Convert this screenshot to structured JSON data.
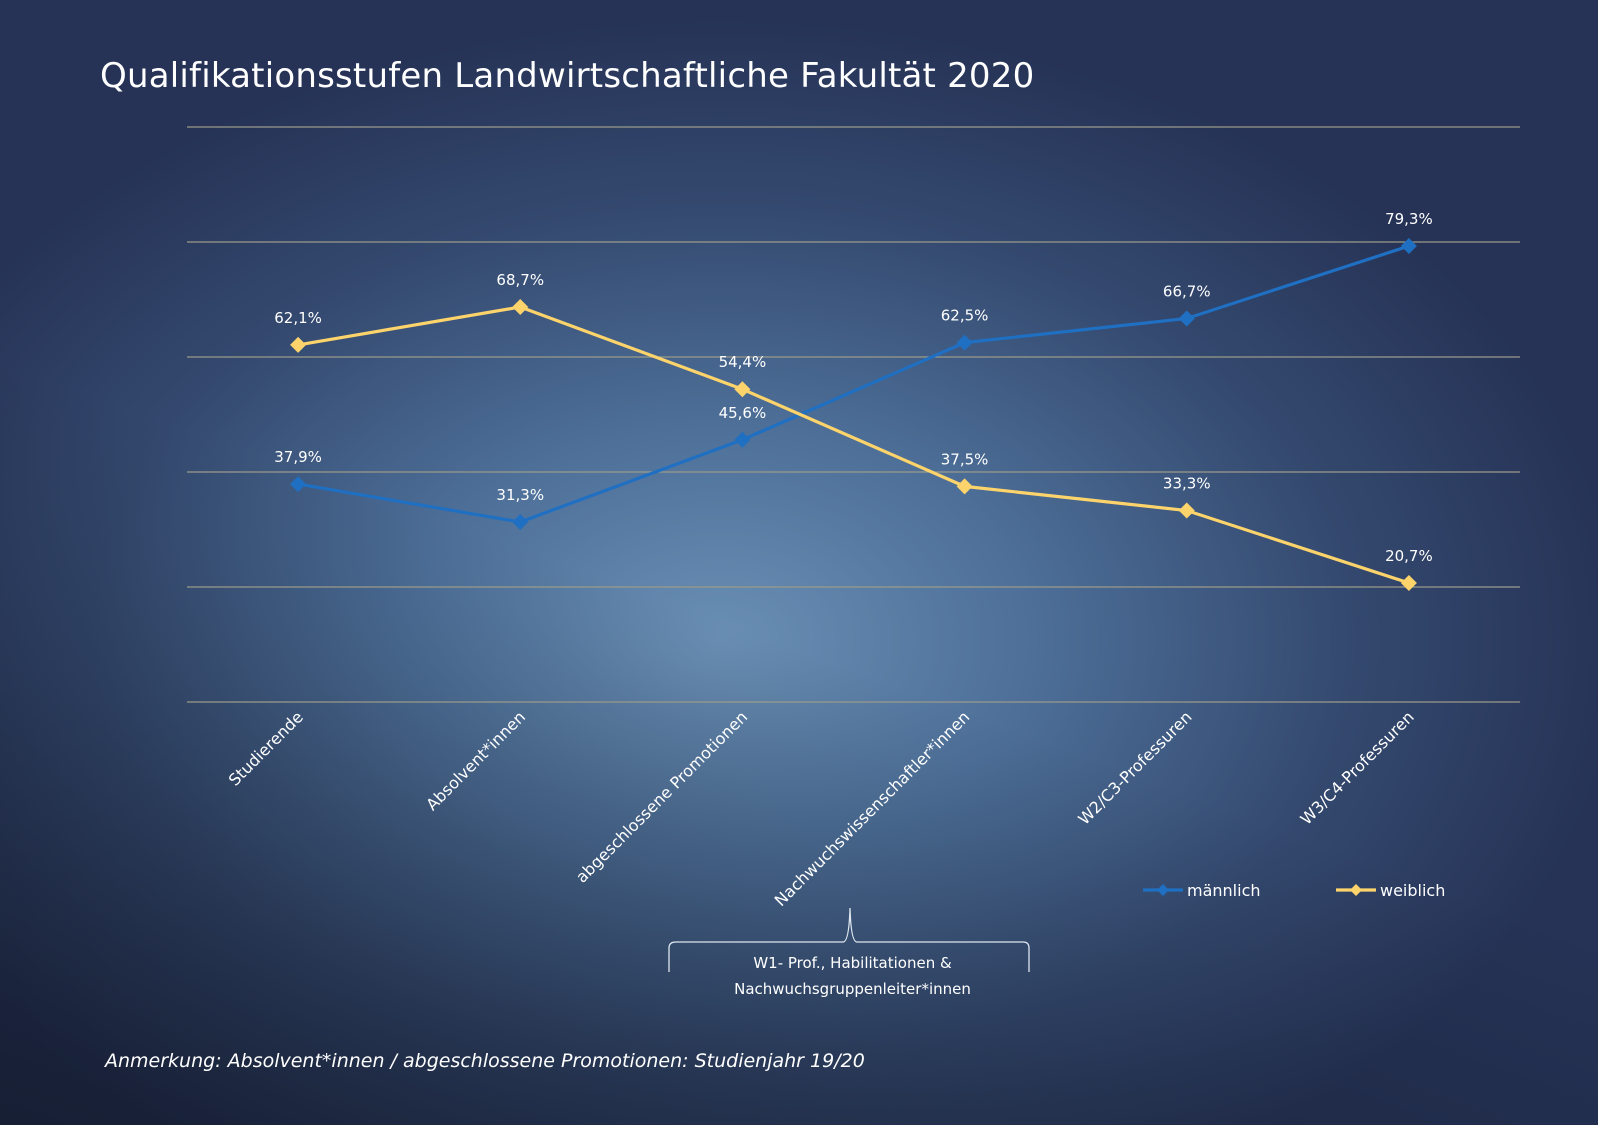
{
  "chart_data": {
    "type": "line",
    "title": "Qualifikationsstufen Landwirtschaftliche Fakultät 2020",
    "categories": [
      "Studierende",
      "Absolvent*innen",
      "abgeschlossene Promotionen",
      "Nachwuchswissenschaftler*innen",
      "W2/C3-Professuren",
      "W3/C4-Professuren"
    ],
    "series": [
      {
        "name": "männlich",
        "color": "#1f6fc2",
        "values": [
          37.9,
          31.3,
          45.6,
          62.5,
          66.7,
          79.3
        ],
        "labels": [
          "37,9%",
          "31,3%",
          "45,6%",
          "62,5%",
          "66,7%",
          "79,3%"
        ]
      },
      {
        "name": "weiblich",
        "color": "#fdd46b",
        "values": [
          62.1,
          68.7,
          54.4,
          37.5,
          33.3,
          20.7
        ],
        "labels": [
          "62,1%",
          "68,7%",
          "54,4%",
          "37,5%",
          "33,3%",
          "20,7%"
        ]
      }
    ],
    "ylim": [
      0,
      100
    ],
    "yticks": [
      0,
      20,
      40,
      60,
      80,
      100
    ],
    "grid": true,
    "legend_position": "bottom-right",
    "xlabel": "",
    "ylabel": ""
  },
  "bracket_annotation": [
    "W1- Prof., Habilitationen &",
    "Nachwuchsgruppenleiter*innen"
  ],
  "note": "Anmerkung: Absolvent*innen / abgeschlossene Promotionen: Studienjahr 19/20"
}
